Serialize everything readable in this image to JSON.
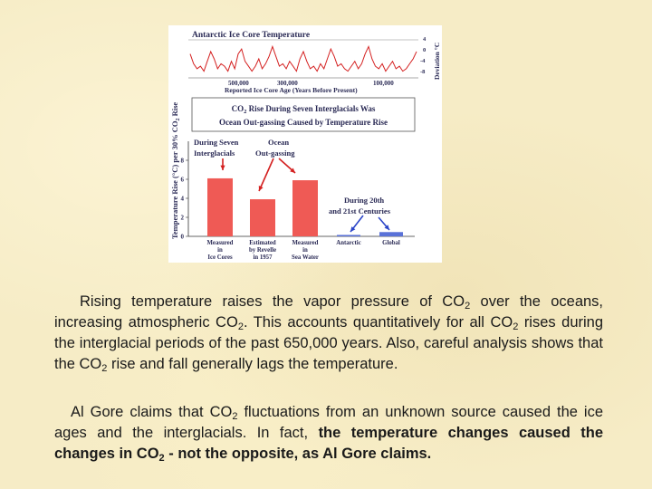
{
  "figure": {
    "top_panel": {
      "title": "Antarctic Ice Core Temperature",
      "y_axis_label": "Deviation °C",
      "y_ticks": [
        "4",
        "0",
        "-4",
        "-8"
      ],
      "x_ticks": [
        "500,000",
        "300,000",
        "100,000"
      ],
      "x_axis_label": "Reported Ice Core Age (Years Before Present)",
      "color": "#d42020"
    },
    "caption_box": {
      "line1_a": "CO",
      "line1_sub": "2",
      "line1_b": " Rise During Seven Interglacials Was",
      "line2": "Ocean Out-gassing Caused by Temperature Rise"
    },
    "left_axis_label_main": "Temperature Rise (°C) per 30% CO",
    "left_axis_label_sub": "2",
    "left_axis_label_end": " Rise",
    "annotations": {
      "interglacials_1": "During Seven",
      "interglacials_2": "Interglacials",
      "ocean_1": "Ocean",
      "ocean_2": "Out-gassing",
      "century_1": "During 20th",
      "century_2": "and 21st Centuries"
    }
  },
  "chart_data": [
    {
      "type": "line",
      "title": "Antarctic Ice Core Temperature",
      "xlabel": "Reported Ice Core Age (Years Before Present)",
      "ylabel": "Deviation °C",
      "x_ticks": [
        "500,000",
        "300,000",
        "100,000"
      ],
      "ylim": [
        -9,
        5
      ],
      "series": [
        {
          "values": [
            0,
            -4,
            -6,
            -5,
            -7,
            -3,
            1,
            -2,
            -6,
            -4,
            -5,
            -7,
            -3,
            -6,
            0,
            2,
            -3,
            -5,
            -7,
            -5,
            -2,
            -6,
            -4,
            -1,
            3,
            -1,
            -5,
            -4,
            -6,
            -3,
            -5,
            -7,
            -2,
            1,
            -3,
            -6,
            -5,
            -7,
            -4,
            -6,
            -2,
            2,
            -1,
            -5,
            -4,
            -6,
            -7,
            -5,
            -3,
            -6,
            -4,
            0,
            3,
            -2,
            -5,
            -6,
            -4,
            -7,
            -5,
            -3,
            -6,
            -5,
            -7,
            -6,
            -4,
            -2,
            1
          ]
        }
      ]
    },
    {
      "type": "bar",
      "ylabel": "Temperature Rise (°C) per 30% CO2 Rise",
      "ylim": [
        0,
        10
      ],
      "y_ticks": [
        "0",
        "2",
        "4",
        "6",
        "8"
      ],
      "categories": [
        "Measured in Ice Cores",
        "Estimated by Revelle in 1957",
        "Measured in Sea Water",
        "Antarctic",
        "Global"
      ],
      "category_lines": [
        [
          "Measured",
          "in",
          "Ice Cores"
        ],
        [
          "Estimated",
          "by Revelle",
          "in 1957"
        ],
        [
          "Measured",
          "in",
          "Sea Water"
        ],
        [
          "Antarctic"
        ],
        [
          "Global"
        ]
      ],
      "values": [
        6.1,
        3.9,
        5.9,
        0.15,
        0.45
      ],
      "colors": [
        "#ef5a55",
        "#ef5a55",
        "#ef5a55",
        "#5a72d8",
        "#5a72d8"
      ]
    }
  ],
  "text": {
    "p1_a": "Rising temperature raises the vapor pressure of CO",
    "p1_b": " over the oceans, increasing atmospheric CO",
    "p1_c": ". This accounts quantitatively for all CO",
    "p1_d": " rises during the interglacial periods of the past 650,000 years. Also, careful analysis shows that the CO",
    "p1_e": " rise and fall generally ",
    "p1_lags": "lags",
    "p1_f": " the temperature.",
    "p2_a": "Al Gore claims that CO",
    "p2_b": " fluctuations from an unknown source caused the ice ages and the interglacials. In fact, ",
    "p2_bold_a": "the temperature changes caused the changes in CO",
    "p2_bold_b": " - not the opposite, as Al Gore claims.",
    "sub2": "2"
  }
}
